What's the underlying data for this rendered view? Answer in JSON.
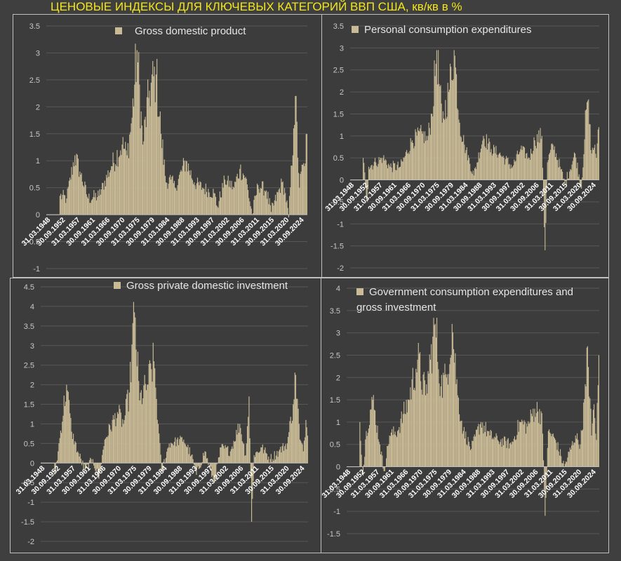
{
  "title": "ЦЕНОВЫЕ ИНДЕКСЫ ДЛЯ КЛЮЧЕВЫХ КАТЕГОРИЙ ВВП США, кв/кв в %",
  "colors": {
    "bar": "#c9bb96",
    "title": "#f3e61a",
    "background": "#3f3f3f",
    "grid": "#575757",
    "axis": "#bfbfbf"
  },
  "chart_data": [
    {
      "type": "bar",
      "title": "",
      "legend": [
        "Gross domestic product"
      ],
      "legend_position": "top",
      "series": [
        {
          "name": "Gross domestic product"
        }
      ],
      "ylim": [
        -1,
        3.5
      ],
      "yticks": [
        "-1",
        "-0.5",
        "0",
        "0.5",
        "1",
        "1.5",
        "2",
        "2.5",
        "3",
        "3.5"
      ],
      "x_tick_labels": [
        "31.03.1948",
        "30.09.1952",
        "31.03.1957",
        "30.09.1961",
        "31.03.1966",
        "30.09.1970",
        "31.03.1975",
        "30.09.1979",
        "31.03.1984",
        "30.09.1988",
        "31.03.1993",
        "30.09.1997",
        "31.03.2002",
        "30.09.2006",
        "31.03.2011",
        "30.09.2015",
        "31.03.2020",
        "30.09.2024"
      ],
      "x_start": "1947Q2",
      "x_end": "2025Q4",
      "frequency": "quarterly",
      "key_points": [
        {
          "x": "1947Q2",
          "y": 0.0
        },
        {
          "x": "1951Q1",
          "y": 0.0
        },
        {
          "x": "1951Q2",
          "y": 0.35
        },
        {
          "x": "1953Q2",
          "y": 0.3
        },
        {
          "x": "1955Q4",
          "y": 1.1
        },
        {
          "x": "1957Q2",
          "y": 0.8
        },
        {
          "x": "1959Q4",
          "y": 0.3
        },
        {
          "x": "1963Q1",
          "y": 0.35
        },
        {
          "x": "1966Q4",
          "y": 0.9
        },
        {
          "x": "1970Q1",
          "y": 1.3
        },
        {
          "x": "1971Q3",
          "y": 1.1
        },
        {
          "x": "1973Q1",
          "y": 1.8
        },
        {
          "x": "1974Q3",
          "y": 3.05
        },
        {
          "x": "1976Q2",
          "y": 1.3
        },
        {
          "x": "1978Q2",
          "y": 2.3
        },
        {
          "x": "1980Q2",
          "y": 2.6
        },
        {
          "x": "1981Q4",
          "y": 1.5
        },
        {
          "x": "1983Q2",
          "y": 0.6
        },
        {
          "x": "1984Q4",
          "y": 0.65
        },
        {
          "x": "1986Q1",
          "y": 0.5
        },
        {
          "x": "1989Q2",
          "y": 1.0
        },
        {
          "x": "1991Q4",
          "y": 0.6
        },
        {
          "x": "1994Q2",
          "y": 0.5
        },
        {
          "x": "1997Q4",
          "y": 0.4
        },
        {
          "x": "1998Q4",
          "y": 0.15
        },
        {
          "x": "2001Q1",
          "y": 0.65
        },
        {
          "x": "2003Q4",
          "y": 0.5
        },
        {
          "x": "2005Q3",
          "y": 0.85
        },
        {
          "x": "2007Q2",
          "y": 0.7
        },
        {
          "x": "2009Q2",
          "y": 0.0
        },
        {
          "x": "2011Q1",
          "y": 0.55
        },
        {
          "x": "2013Q3",
          "y": 0.45
        },
        {
          "x": "2015Q1",
          "y": 0.05
        },
        {
          "x": "2018Q2",
          "y": 0.6
        },
        {
          "x": "2019Q2",
          "y": 0.4
        },
        {
          "x": "2020Q2",
          "y": -0.05
        },
        {
          "x": "2021Q4",
          "y": 1.6
        },
        {
          "x": "2022Q2",
          "y": 2.2
        },
        {
          "x": "2023Q3",
          "y": 0.5
        },
        {
          "x": "2024Q1",
          "y": 0.8
        },
        {
          "x": "2025Q1",
          "y": 0.9
        },
        {
          "x": "2025Q4",
          "y": 1.5
        }
      ]
    },
    {
      "type": "bar",
      "title": "",
      "legend": [
        "Personal consumption expenditures"
      ],
      "legend_position": "top",
      "series": [
        {
          "name": "Personal consumption expenditures"
        }
      ],
      "ylim": [
        -2,
        3.5
      ],
      "yticks": [
        "-2",
        "-1.5",
        "-1",
        "-0.5",
        "0",
        "0.5",
        "1",
        "1.5",
        "2",
        "2.5",
        "3",
        "3.5"
      ],
      "x_tick_labels": [
        "31.03.1948",
        "30.09.1952",
        "31.03.1957",
        "30.09.1961",
        "31.03.1966",
        "30.09.1970",
        "31.03.1975",
        "30.09.1979",
        "31.03.1984",
        "30.09.1988",
        "31.03.1993",
        "30.09.1997",
        "31.03.2002",
        "30.09.2006",
        "31.03.2011",
        "30.09.2015",
        "31.03.2020",
        "30.09.2024"
      ],
      "x_start": "1947Q2",
      "x_end": "2025Q4",
      "frequency": "quarterly",
      "key_points": [
        {
          "x": "1947Q2",
          "y": 0.0
        },
        {
          "x": "1951Q1",
          "y": 0.0
        },
        {
          "x": "1951Q2",
          "y": 0.5
        },
        {
          "x": "1952Q3",
          "y": -0.5
        },
        {
          "x": "1953Q1",
          "y": 0.3
        },
        {
          "x": "1955Q2",
          "y": 0.4
        },
        {
          "x": "1957Q3",
          "y": 0.5
        },
        {
          "x": "1959Q4",
          "y": 0.3
        },
        {
          "x": "1963Q1",
          "y": 0.3
        },
        {
          "x": "1966Q4",
          "y": 0.9
        },
        {
          "x": "1970Q1",
          "y": 1.05
        },
        {
          "x": "1971Q3",
          "y": 0.9
        },
        {
          "x": "1973Q1",
          "y": 1.5
        },
        {
          "x": "1974Q3",
          "y": 2.95
        },
        {
          "x": "1976Q2",
          "y": 1.3
        },
        {
          "x": "1978Q2",
          "y": 2.0
        },
        {
          "x": "1980Q1",
          "y": 2.95
        },
        {
          "x": "1981Q4",
          "y": 1.3
        },
        {
          "x": "1983Q2",
          "y": 0.8
        },
        {
          "x": "1986Q2",
          "y": 0.1
        },
        {
          "x": "1989Q2",
          "y": 1.0
        },
        {
          "x": "1991Q4",
          "y": 0.7
        },
        {
          "x": "1994Q2",
          "y": 0.6
        },
        {
          "x": "1998Q3",
          "y": 0.3
        },
        {
          "x": "2001Q1",
          "y": 0.7
        },
        {
          "x": "2003Q4",
          "y": 0.5
        },
        {
          "x": "2005Q3",
          "y": 0.9
        },
        {
          "x": "2007Q4",
          "y": 1.0
        },
        {
          "x": "2008Q4",
          "y": -1.6
        },
        {
          "x": "2009Q3",
          "y": 0.4
        },
        {
          "x": "2011Q2",
          "y": 0.8
        },
        {
          "x": "2013Q3",
          "y": 0.3
        },
        {
          "x": "2015Q1",
          "y": -0.1
        },
        {
          "x": "2018Q2",
          "y": 0.6
        },
        {
          "x": "2020Q2",
          "y": -0.2
        },
        {
          "x": "2021Q4",
          "y": 1.6
        },
        {
          "x": "2022Q2",
          "y": 1.8
        },
        {
          "x": "2023Q3",
          "y": 0.6
        },
        {
          "x": "2024Q3",
          "y": 0.8
        },
        {
          "x": "2025Q1",
          "y": 0.5
        },
        {
          "x": "2025Q4",
          "y": 1.2
        }
      ]
    },
    {
      "type": "bar",
      "title": "",
      "legend": [
        "Gross private domestic investment"
      ],
      "legend_position": "top",
      "series": [
        {
          "name": "Gross private domestic investment"
        }
      ],
      "ylim": [
        -2,
        4.5
      ],
      "yticks": [
        "-2",
        "-1.5",
        "-1",
        "-0.5",
        "0",
        "0.5",
        "1",
        "1.5",
        "2",
        "2.5",
        "3",
        "3.5",
        "4",
        "4.5"
      ],
      "x_tick_labels": [
        "31.03.1948",
        "30.09.1952",
        "31.03.1957",
        "30.09.1961",
        "31.03.1966",
        "30.09.1970",
        "31.03.1975",
        "30.09.1979",
        "31.03.1984",
        "30.09.1988",
        "31.03.1993",
        "30.09.1997",
        "31.03.2002",
        "30.09.2006",
        "31.03.2011",
        "30.09.2015",
        "31.03.2020",
        "30.09.2024"
      ],
      "x_start": "1947Q2",
      "x_end": "2025Q4",
      "frequency": "quarterly",
      "key_points": [
        {
          "x": "1947Q2",
          "y": 0.0
        },
        {
          "x": "1951Q1",
          "y": 0.0
        },
        {
          "x": "1951Q2",
          "y": -0.3
        },
        {
          "x": "1952Q2",
          "y": 0.3
        },
        {
          "x": "1954Q4",
          "y": 2.0
        },
        {
          "x": "1956Q2",
          "y": 0.8
        },
        {
          "x": "1958Q1",
          "y": 0.3
        },
        {
          "x": "1960Q2",
          "y": -0.2
        },
        {
          "x": "1962Q3",
          "y": 0.1
        },
        {
          "x": "1964Q2",
          "y": -0.4
        },
        {
          "x": "1966Q1",
          "y": 0.6
        },
        {
          "x": "1969Q4",
          "y": 1.3
        },
        {
          "x": "1971Q3",
          "y": 1.0
        },
        {
          "x": "1973Q2",
          "y": 1.8
        },
        {
          "x": "1974Q4",
          "y": 3.85
        },
        {
          "x": "1976Q2",
          "y": 1.6
        },
        {
          "x": "1978Q3",
          "y": 2.0
        },
        {
          "x": "1980Q3",
          "y": 2.6
        },
        {
          "x": "1981Q4",
          "y": 1.0
        },
        {
          "x": "1982Q4",
          "y": -0.2
        },
        {
          "x": "1985Q1",
          "y": 0.5
        },
        {
          "x": "1989Q2",
          "y": 0.6
        },
        {
          "x": "1991Q3",
          "y": 0.2
        },
        {
          "x": "1993Q1",
          "y": -0.3
        },
        {
          "x": "1995Q3",
          "y": 0.3
        },
        {
          "x": "1998Q2",
          "y": -0.5
        },
        {
          "x": "2000Q2",
          "y": 0.4
        },
        {
          "x": "2003Q1",
          "y": 0.3
        },
        {
          "x": "2005Q4",
          "y": 1.0
        },
        {
          "x": "2007Q3",
          "y": 0.2
        },
        {
          "x": "2008Q3",
          "y": 1.7
        },
        {
          "x": "2009Q2",
          "y": -1.5
        },
        {
          "x": "2010Q1",
          "y": 0.2
        },
        {
          "x": "2012Q2",
          "y": 0.4
        },
        {
          "x": "2014Q4",
          "y": 0.1
        },
        {
          "x": "2017Q2",
          "y": 0.3
        },
        {
          "x": "2019Q4",
          "y": 0.5
        },
        {
          "x": "2021Q3",
          "y": 1.5
        },
        {
          "x": "2022Q2",
          "y": 2.25
        },
        {
          "x": "2023Q3",
          "y": 0.6
        },
        {
          "x": "2024Q3",
          "y": 0.3
        },
        {
          "x": "2025Q2",
          "y": 1.1
        },
        {
          "x": "2025Q4",
          "y": 0.7
        }
      ]
    },
    {
      "type": "bar",
      "title": "",
      "legend": [
        "Government consumption expenditures and",
        "gross investment"
      ],
      "legend_position": "top",
      "series": [
        {
          "name": "Government consumption expenditures and gross investment"
        }
      ],
      "ylim": [
        -1.5,
        4
      ],
      "yticks": [
        "-1.5",
        "-1",
        "-0.5",
        "0",
        "0.5",
        "1",
        "1.5",
        "2",
        "2.5",
        "3",
        "3.5",
        "4"
      ],
      "x_tick_labels": [
        "31.03.1948",
        "30.09.1952",
        "31.03.1957",
        "30.09.1961",
        "31.03.1966",
        "30.09.1970",
        "31.03.1975",
        "30.09.1979",
        "31.03.1984",
        "30.09.1988",
        "31.03.1993",
        "30.09.1997",
        "31.03.2002",
        "30.09.2006",
        "31.03.2011",
        "30.09.2015",
        "31.03.2020",
        "30.09.2024"
      ],
      "x_start": "1947Q2",
      "x_end": "2025Q4",
      "frequency": "quarterly",
      "key_points": [
        {
          "x": "1947Q2",
          "y": 0.0
        },
        {
          "x": "1951Q1",
          "y": 0.0
        },
        {
          "x": "1951Q2",
          "y": 1.0
        },
        {
          "x": "1952Q2",
          "y": -0.2
        },
        {
          "x": "1953Q2",
          "y": 0.8
        },
        {
          "x": "1955Q2",
          "y": 1.5
        },
        {
          "x": "1957Q3",
          "y": 0.5
        },
        {
          "x": "1958Q4",
          "y": -0.1
        },
        {
          "x": "1960Q3",
          "y": 0.7
        },
        {
          "x": "1963Q1",
          "y": 0.8
        },
        {
          "x": "1966Q3",
          "y": 1.5
        },
        {
          "x": "1969Q2",
          "y": 2.4
        },
        {
          "x": "1971Q4",
          "y": 1.6
        },
        {
          "x": "1973Q2",
          "y": 2.4
        },
        {
          "x": "1974Q4",
          "y": 3.2
        },
        {
          "x": "1976Q3",
          "y": 1.8
        },
        {
          "x": "1978Q2",
          "y": 2.0
        },
        {
          "x": "1980Q1",
          "y": 3.2
        },
        {
          "x": "1981Q4",
          "y": 1.6
        },
        {
          "x": "1983Q3",
          "y": 0.8
        },
        {
          "x": "1986Q1",
          "y": 0.4
        },
        {
          "x": "1989Q1",
          "y": 1.0
        },
        {
          "x": "1991Q4",
          "y": 0.7
        },
        {
          "x": "1994Q2",
          "y": 0.6
        },
        {
          "x": "1998Q3",
          "y": 0.5
        },
        {
          "x": "2001Q2",
          "y": 1.0
        },
        {
          "x": "2003Q3",
          "y": 0.9
        },
        {
          "x": "2005Q4",
          "y": 1.3
        },
        {
          "x": "2008Q1",
          "y": 1.2
        },
        {
          "x": "2009Q1",
          "y": -1.1
        },
        {
          "x": "2010Q1",
          "y": 0.8
        },
        {
          "x": "2012Q2",
          "y": 0.6
        },
        {
          "x": "2015Q1",
          "y": 0.0
        },
        {
          "x": "2018Q3",
          "y": 0.7
        },
        {
          "x": "2020Q1",
          "y": 0.5
        },
        {
          "x": "2021Q4",
          "y": 1.8
        },
        {
          "x": "2022Q2",
          "y": 2.7
        },
        {
          "x": "2023Q3",
          "y": 0.7
        },
        {
          "x": "2024Q2",
          "y": 1.4
        },
        {
          "x": "2025Q1",
          "y": 0.6
        },
        {
          "x": "2025Q4",
          "y": 2.5
        }
      ]
    }
  ]
}
